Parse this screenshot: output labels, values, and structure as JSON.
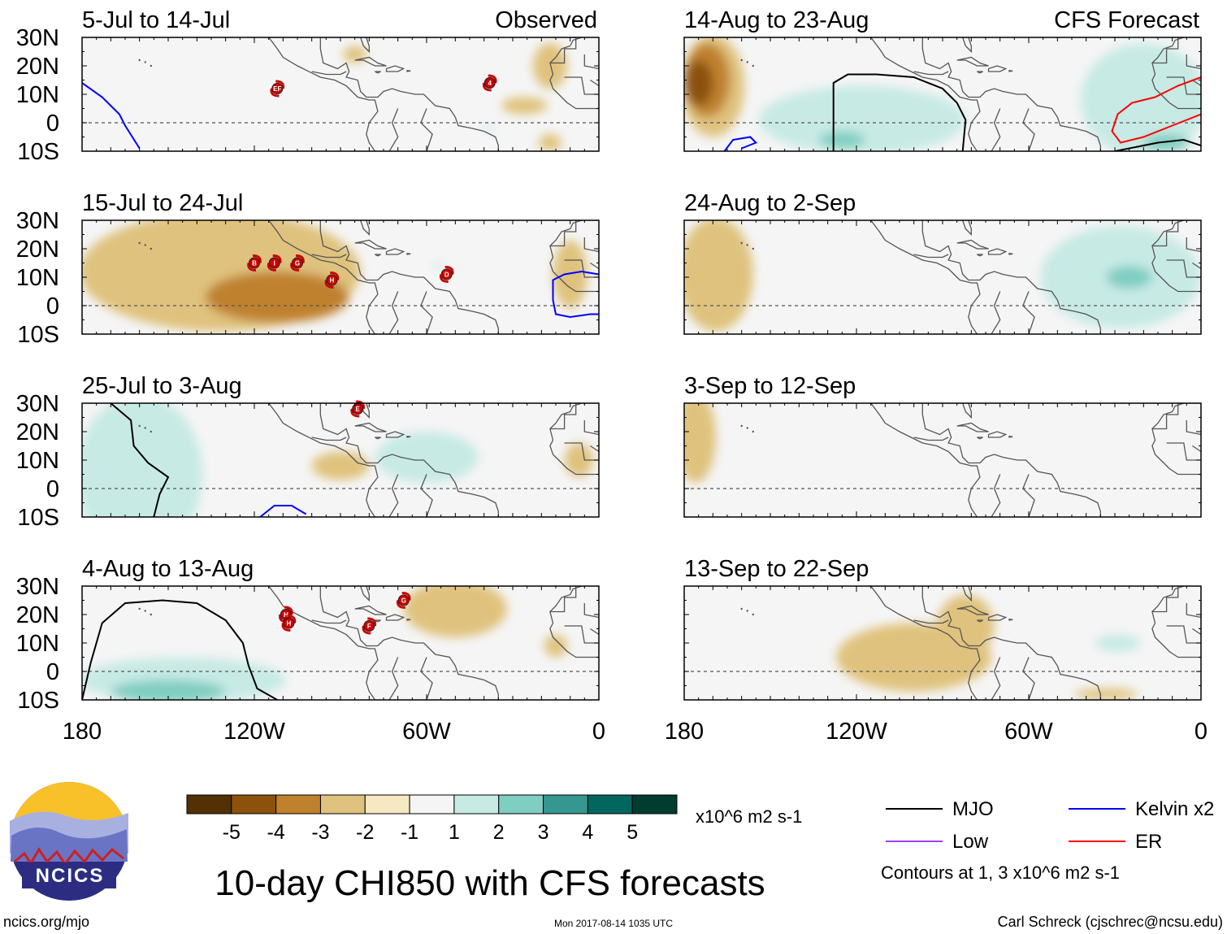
{
  "chart_data": {
    "type": "heatmap",
    "title": "10-day CHI850 with CFS forecasts",
    "units": "x10^6 m2 s-1",
    "website": "ncics.org/mjo",
    "timestamp": "Mon 2017-08-14 1035 UTC",
    "author": "Carl Schreck (cjschrec@ncsu.edu)",
    "logo_text": "NCICS",
    "contour_note": "Contours at 1, 3 x10^6 m2 s-1",
    "x_range": [
      -180,
      0
    ],
    "y_range": [
      -10,
      30
    ],
    "lat_ticks": [
      "30N",
      "20N",
      "10N",
      "0",
      "10S"
    ],
    "lon_ticks": [
      {
        "lon": -180,
        "label": "180"
      },
      {
        "lon": -120,
        "label": "120W"
      },
      {
        "lon": -60,
        "label": "60W"
      },
      {
        "lon": 0,
        "label": "0"
      }
    ],
    "colorbar": {
      "labels": [
        "-5",
        "-4",
        "-3",
        "-2",
        "-1",
        "1",
        "2",
        "3",
        "4",
        "5"
      ],
      "colors": [
        "#543005",
        "#8c510a",
        "#bf812d",
        "#dfc27d",
        "#f6e8c3",
        "#f5f5f5",
        "#c7eae5",
        "#80cdc1",
        "#35978f",
        "#01665e",
        "#003c30"
      ]
    },
    "legend": [
      {
        "name": "MJO",
        "color": "#000000"
      },
      {
        "name": "Kelvin x2",
        "color": "#0000ff"
      },
      {
        "name": "Low",
        "color": "#a040ff"
      },
      {
        "name": "ER",
        "color": "#ff0000"
      }
    ],
    "panels": [
      {
        "col": 0,
        "row": 0,
        "period": "5-Jul to 14-Jul",
        "tag": "Observed",
        "fields": [
          {
            "value": -1,
            "lon": -85,
            "lat": 24,
            "rlon": 4,
            "rlat": 3
          },
          {
            "value": -1,
            "lon": -26,
            "lat": 6,
            "rlon": 8,
            "rlat": 3
          },
          {
            "value": -1,
            "lon": -17,
            "lat": 20,
            "rlon": 6,
            "rlat": 8
          },
          {
            "value": -1,
            "lon": -17,
            "lat": -7,
            "rlon": 4,
            "rlat": 3
          },
          {
            "value": 1,
            "lon": -38,
            "lat": -2,
            "rlon": 2,
            "rlat": 1
          }
        ],
        "contours": [
          {
            "type": "Kelvin x2",
            "points": [
              [
                -180,
                14
              ],
              [
                -173,
                9
              ],
              [
                -167,
                3
              ],
              [
                -165,
                -1
              ],
              [
                -160,
                -9
              ]
            ]
          }
        ],
        "storms": [
          {
            "label": "EF",
            "lon": -112,
            "lat": 12
          },
          {
            "label": "4",
            "lon": -38,
            "lat": 14
          }
        ]
      },
      {
        "col": 1,
        "row": 0,
        "period": "14-Aug to 23-Aug",
        "tag": "CFS Forecast",
        "fields": [
          {
            "value": -1,
            "lon": -170,
            "lat": 13,
            "rlon": 11,
            "rlat": 18
          },
          {
            "value": -2,
            "lon": -172,
            "lat": 15,
            "rlon": 8,
            "rlat": 13
          },
          {
            "value": -3,
            "lon": -175,
            "lat": 14,
            "rlon": 5,
            "rlat": 8
          },
          {
            "value": 1,
            "lon": -118,
            "lat": 1,
            "rlon": 36,
            "rlat": 12
          },
          {
            "value": 2,
            "lon": -125,
            "lat": -6,
            "rlon": 8,
            "rlat": 3
          },
          {
            "value": 1,
            "lon": -20,
            "lat": 8,
            "rlon": 22,
            "rlat": 20
          },
          {
            "value": 2,
            "lon": -12,
            "lat": -7,
            "rlon": 8,
            "rlat": 3
          }
        ],
        "contours": [
          {
            "type": "MJO",
            "points": [
              [
                -128,
                -10
              ],
              [
                -128,
                14
              ],
              [
                -123,
                17
              ],
              [
                -113,
                17
              ],
              [
                -100,
                16
              ],
              [
                -90,
                12
              ],
              [
                -85,
                7
              ],
              [
                -82,
                1
              ],
              [
                -83,
                -10
              ]
            ]
          },
          {
            "type": "Kelvin x2",
            "points": [
              [
                -166,
                -10
              ],
              [
                -163,
                -6
              ],
              [
                -157,
                -5
              ],
              [
                -155,
                -7
              ],
              [
                -160,
                -9
              ]
            ]
          },
          {
            "type": "ER",
            "points": [
              [
                0,
                16
              ],
              [
                -8,
                13
              ],
              [
                -16,
                9
              ],
              [
                -24,
                7
              ],
              [
                -29,
                3
              ],
              [
                -31,
                -3
              ],
              [
                -28,
                -7
              ],
              [
                -20,
                -5
              ],
              [
                -10,
                -1
              ],
              [
                0,
                3
              ]
            ]
          },
          {
            "type": "MJO",
            "points": [
              [
                -30,
                -10
              ],
              [
                -15,
                -7
              ],
              [
                -6,
                -6
              ],
              [
                0,
                -8
              ]
            ]
          }
        ],
        "storms": []
      },
      {
        "col": 0,
        "row": 1,
        "period": "15-Jul to 24-Jul",
        "fields": [
          {
            "value": -1,
            "lon": -132,
            "lat": 12,
            "rlon": 49,
            "rlat": 21
          },
          {
            "value": -2,
            "lon": -112,
            "lat": 3,
            "rlon": 25,
            "rlat": 9
          },
          {
            "value": -1,
            "lon": -10,
            "lat": 11,
            "rlon": 6,
            "rlat": 12
          },
          {
            "value": 1,
            "lon": -56,
            "lat": 14,
            "rlon": 2,
            "rlat": 1
          }
        ],
        "contours": [
          {
            "type": "Kelvin x2",
            "points": [
              [
                0,
                11
              ],
              [
                -6,
                12
              ],
              [
                -12,
                11
              ],
              [
                -16,
                9
              ],
              [
                -16,
                2
              ],
              [
                -15,
                -3
              ],
              [
                -10,
                -4
              ],
              [
                -3,
                -3
              ],
              [
                0,
                -3
              ]
            ]
          }
        ],
        "storms": [
          {
            "label": "B",
            "lon": -120,
            "lat": 15
          },
          {
            "label": "I",
            "lon": -113,
            "lat": 15
          },
          {
            "label": "G",
            "lon": -105,
            "lat": 15
          },
          {
            "label": "H",
            "lon": -93,
            "lat": 9
          },
          {
            "label": "D",
            "lon": -53,
            "lat": 11
          }
        ]
      },
      {
        "col": 1,
        "row": 1,
        "period": "24-Aug to 2-Sep",
        "fields": [
          {
            "value": -1,
            "lon": -169,
            "lat": 11,
            "rlon": 13,
            "rlat": 20
          },
          {
            "value": 1,
            "lon": -28,
            "lat": 10,
            "rlon": 28,
            "rlat": 18
          },
          {
            "value": 2,
            "lon": -25,
            "lat": 10,
            "rlon": 8,
            "rlat": 4
          }
        ],
        "contours": [],
        "storms": []
      },
      {
        "col": 0,
        "row": 2,
        "period": "25-Jul to 3-Aug",
        "fields": [
          {
            "value": 1,
            "lon": -160,
            "lat": 5,
            "rlon": 22,
            "rlat": 28
          },
          {
            "value": 1,
            "lon": -60,
            "lat": 11,
            "rlon": 18,
            "rlat": 9
          },
          {
            "value": -1,
            "lon": -90,
            "lat": 8,
            "rlon": 10,
            "rlat": 5
          },
          {
            "value": -1,
            "lon": -7,
            "lat": 10,
            "rlon": 5,
            "rlat": 6
          }
        ],
        "contours": [
          {
            "type": "MJO",
            "points": [
              [
                -170,
                30
              ],
              [
                -163,
                24
              ],
              [
                -162,
                15
              ],
              [
                -157,
                9
              ],
              [
                -150,
                4
              ],
              [
                -153,
                -2
              ],
              [
                -155,
                -10
              ]
            ]
          },
          {
            "type": "Kelvin x2",
            "points": [
              [
                -118,
                -10
              ],
              [
                -113,
                -6
              ],
              [
                -107,
                -6
              ],
              [
                -102,
                -9
              ]
            ]
          }
        ],
        "storms": [
          {
            "label": "E",
            "lon": -84,
            "lat": 28
          }
        ]
      },
      {
        "col": 1,
        "row": 2,
        "period": "3-Sep to 12-Sep",
        "fields": [
          {
            "value": -1,
            "lon": -176,
            "lat": 18,
            "rlon": 7,
            "rlat": 16
          }
        ],
        "contours": [],
        "storms": []
      },
      {
        "col": 0,
        "row": 3,
        "period": "4-Aug to 13-Aug",
        "fields": [
          {
            "value": 1,
            "lon": -145,
            "lat": -3,
            "rlon": 36,
            "rlat": 8
          },
          {
            "value": 2,
            "lon": -150,
            "lat": -7,
            "rlon": 20,
            "rlat": 4
          },
          {
            "value": -1,
            "lon": -50,
            "lat": 22,
            "rlon": 18,
            "rlat": 10
          },
          {
            "value": -1,
            "lon": -15,
            "lat": 9,
            "rlon": 4,
            "rlat": 4
          }
        ],
        "contours": [
          {
            "type": "MJO",
            "points": [
              [
                -180,
                -10
              ],
              [
                -177,
                3
              ],
              [
                -173,
                17
              ],
              [
                -165,
                24
              ],
              [
                -152,
                25
              ],
              [
                -140,
                24
              ],
              [
                -130,
                18
              ],
              [
                -124,
                10
              ],
              [
                -122,
                2
              ],
              [
                -119,
                -6
              ],
              [
                -112,
                -10
              ]
            ]
          }
        ],
        "storms": [
          {
            "label": "G",
            "lon": -68,
            "lat": 25
          },
          {
            "label": "H",
            "lon": -109,
            "lat": 20
          },
          {
            "label": "H",
            "lon": -108,
            "lat": 17
          },
          {
            "label": "F",
            "lon": -80,
            "lat": 16
          }
        ]
      },
      {
        "col": 1,
        "row": 3,
        "period": "13-Sep to 22-Sep",
        "fields": [
          {
            "value": -1,
            "lon": -100,
            "lat": 5,
            "rlon": 27,
            "rlat": 12
          },
          {
            "value": -1,
            "lon": -82,
            "lat": 16,
            "rlon": 10,
            "rlat": 11
          },
          {
            "value": 1,
            "lon": -29,
            "lat": 10,
            "rlon": 8,
            "rlat": 3
          },
          {
            "value": -1,
            "lon": -33,
            "lat": -8,
            "rlon": 11,
            "rlat": 2
          }
        ],
        "contours": [],
        "storms": []
      }
    ]
  }
}
